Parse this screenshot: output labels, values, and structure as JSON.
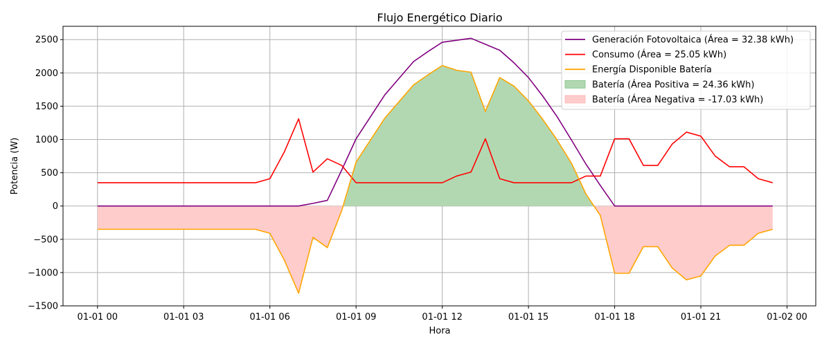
{
  "chart_data": {
    "type": "area",
    "title": "Flujo Energético Diario",
    "xlabel": "Hora",
    "ylabel": "Potencia (W)",
    "ylim": [
      -1500,
      2700
    ],
    "xlim_hours": [
      -1.2,
      25.0
    ],
    "grid": true,
    "legend_position": "top-right",
    "x_ticks": [
      {
        "hour": 0,
        "label": "01-01 00"
      },
      {
        "hour": 3,
        "label": "01-01 03"
      },
      {
        "hour": 6,
        "label": "01-01 06"
      },
      {
        "hour": 9,
        "label": "01-01 09"
      },
      {
        "hour": 12,
        "label": "01-01 12"
      },
      {
        "hour": 15,
        "label": "01-01 15"
      },
      {
        "hour": 18,
        "label": "01-01 18"
      },
      {
        "hour": 21,
        "label": "01-01 21"
      },
      {
        "hour": 24,
        "label": "01-02 00"
      }
    ],
    "y_ticks": [
      -1500,
      -1000,
      -500,
      0,
      500,
      1000,
      1500,
      2000,
      2500
    ],
    "x_hours": [
      0,
      0.5,
      1,
      1.5,
      2,
      2.5,
      3,
      3.5,
      4,
      4.5,
      5,
      5.5,
      6,
      6.5,
      7,
      7.5,
      8,
      8.5,
      9,
      9.5,
      10,
      10.5,
      11,
      11.5,
      12,
      12.5,
      13,
      13.5,
      14,
      14.5,
      15,
      15.5,
      16,
      16.5,
      17,
      17.5,
      18,
      18.5,
      19,
      19.5,
      20,
      20.5,
      21,
      21.5,
      22,
      22.5,
      23,
      23.5
    ],
    "series": [
      {
        "name": "Generación Fotovoltaica (Área = 32.38 kWh)",
        "color": "#800080",
        "values": [
          0,
          0,
          0,
          0,
          0,
          0,
          0,
          0,
          0,
          0,
          0,
          0,
          0,
          0,
          0,
          40,
          85,
          540,
          1010,
          1340,
          1670,
          1920,
          2170,
          2320,
          2460,
          2490,
          2520,
          2430,
          2340,
          2150,
          1930,
          1650,
          1340,
          990,
          630,
          310,
          0,
          0,
          0,
          0,
          0,
          0,
          0,
          0,
          0,
          0,
          0,
          0
        ]
      },
      {
        "name": "Consumo (Área = 25.05 kWh)",
        "color": "#ff0000",
        "values": [
          350,
          350,
          350,
          350,
          350,
          350,
          350,
          350,
          350,
          350,
          350,
          350,
          410,
          810,
          1310,
          510,
          710,
          610,
          350,
          350,
          350,
          350,
          350,
          350,
          350,
          450,
          510,
          1010,
          410,
          350,
          350,
          350,
          350,
          350,
          450,
          450,
          1010,
          1010,
          610,
          610,
          930,
          1110,
          1050,
          750,
          590,
          590,
          410,
          350
        ]
      },
      {
        "name": "Energía Disponible Batería",
        "color": "#ffa500",
        "values": [
          -350,
          -350,
          -350,
          -350,
          -350,
          -350,
          -350,
          -350,
          -350,
          -350,
          -350,
          -350,
          -410,
          -810,
          -1310,
          -470,
          -625,
          -70,
          660,
          990,
          1320,
          1570,
          1820,
          1970,
          2110,
          2040,
          2010,
          1420,
          1930,
          1800,
          1580,
          1300,
          990,
          640,
          180,
          -140,
          -1010,
          -1010,
          -610,
          -610,
          -930,
          -1110,
          -1050,
          -750,
          -590,
          -590,
          -410,
          -350
        ]
      }
    ],
    "fills": [
      {
        "name": "Batería (Área Positiva = 24.36 kWh)",
        "color": "#b2d8b2"
      },
      {
        "name": "Batería (Área Negativa = -17.03 kWh)",
        "color": "#ffcccc"
      }
    ]
  }
}
